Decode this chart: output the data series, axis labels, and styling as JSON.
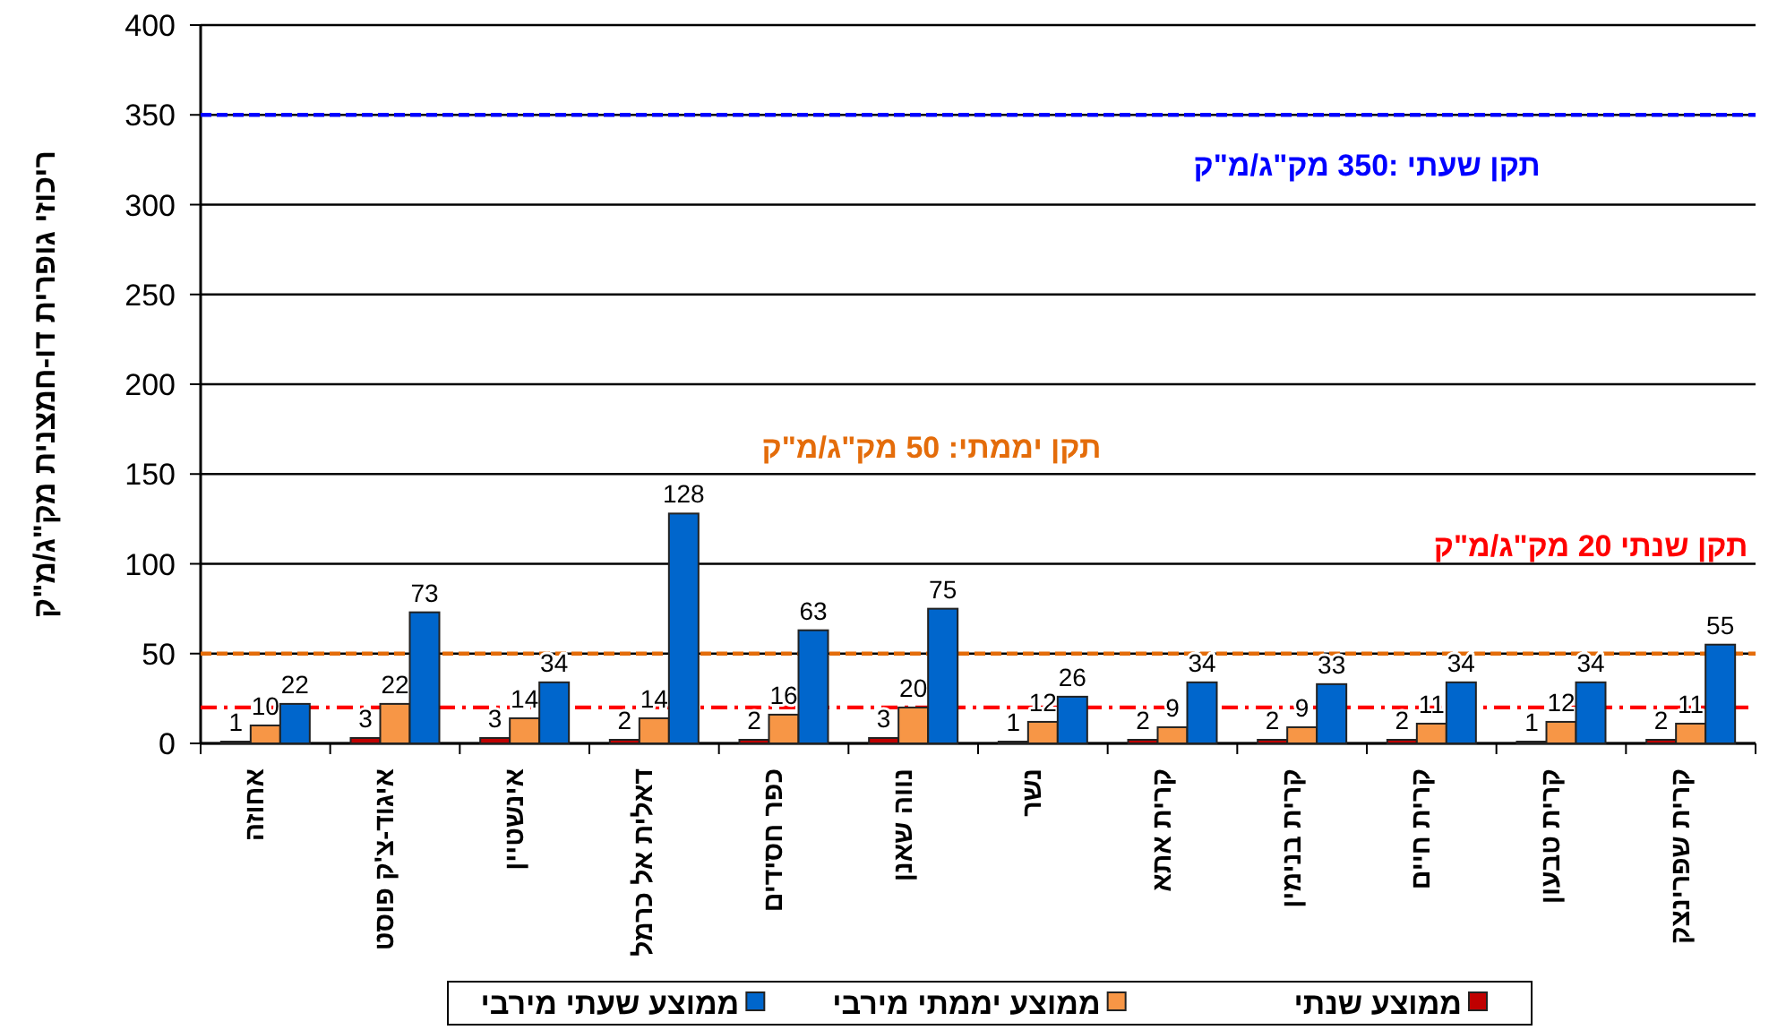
{
  "chart_data": {
    "type": "bar",
    "ylabel": "ריכוזי גופרית דו-חמצנית מק\"ג/מ\"ק",
    "categories": [
      "אחוזה",
      "איגוד-צ'ק פוסט",
      "אינשטיין",
      "דאלית אל כרמל",
      "כפר חסידים",
      "נווה שאנן",
      "נשר",
      "קרית אתא",
      "קרית בנימין",
      "קרית חיים",
      "קרית טבעון",
      "קרית שפרינצק"
    ],
    "series": [
      {
        "name": "ממוצע שנתי",
        "color": "#c00000",
        "values": [
          1,
          3,
          3,
          2,
          2,
          3,
          1,
          2,
          2,
          2,
          1,
          2
        ]
      },
      {
        "name": "ממוצע יממתי מירבי",
        "color": "#f79646",
        "values": [
          10,
          22,
          14,
          14,
          16,
          20,
          12,
          9,
          9,
          11,
          12,
          11
        ]
      },
      {
        "name": "ממוצע שעתי מירבי",
        "color": "#0066cc",
        "values": [
          22,
          73,
          34,
          128,
          63,
          75,
          26,
          34,
          33,
          34,
          34,
          55
        ]
      }
    ],
    "ylim": [
      0,
      400
    ],
    "yticks": [
      0,
      50,
      100,
      150,
      200,
      250,
      300,
      350,
      400
    ],
    "grid": "y",
    "data_labels": true,
    "legend": "bottom",
    "ref_lines": [
      {
        "axis": "y",
        "value": 350,
        "label": "תקן שעתי :350 מק\"ג/מ\"ק",
        "color": "#0000ff",
        "line_style": "dashed"
      },
      {
        "axis": "y",
        "value": 50,
        "label": "תקן יממתי: 50 מק\"ג/מ\"ק",
        "color": "#e46c0a",
        "line_style": "dashed"
      },
      {
        "axis": "y",
        "value": 20,
        "label": "תקן שנתי 20 מק\"ג/מ\"ק",
        "color": "#ff0000",
        "line_style": "dashdot"
      }
    ]
  }
}
